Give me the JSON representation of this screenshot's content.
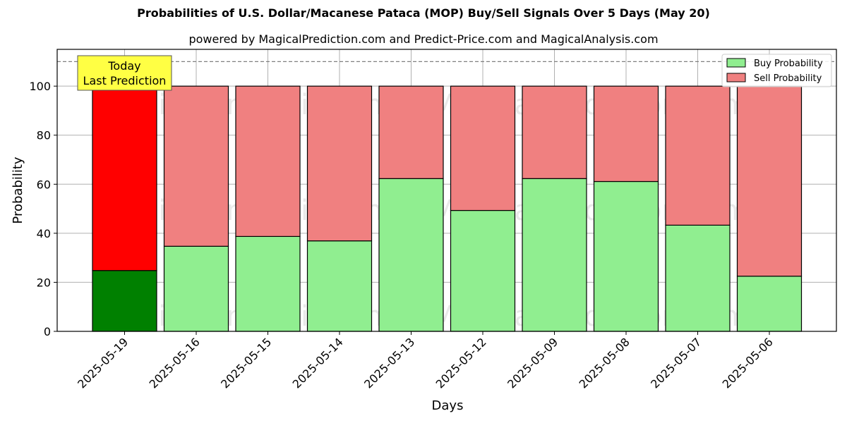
{
  "chart_data": {
    "type": "bar",
    "title": "Probabilities of U.S. Dollar/Macanese Pataca (MOP) Buy/Sell Signals Over 5 Days (May 20)",
    "subtitle": "powered by MagicalPrediction.com and Predict-Price.com and MagicalAnalysis.com",
    "xlabel": "Days",
    "ylabel": "Probability",
    "ylim": [
      0,
      115
    ],
    "yticks": [
      0,
      20,
      40,
      60,
      80,
      100
    ],
    "threshold_line": 110,
    "grid": true,
    "legend_position": "top-right",
    "categories": [
      "2025-05-19",
      "2025-05-16",
      "2025-05-15",
      "2025-05-14",
      "2025-05-13",
      "2025-05-12",
      "2025-05-09",
      "2025-05-08",
      "2025-05-07",
      "2025-05-06"
    ],
    "series": [
      {
        "name": "Buy Probability",
        "color": "#90ee90",
        "highlight_color": "#008000",
        "values": [
          24.8,
          34.7,
          38.7,
          36.9,
          62.3,
          49.3,
          62.3,
          61.1,
          43.3,
          22.5
        ]
      },
      {
        "name": "Sell Probability",
        "color": "#f08080",
        "highlight_color": "#ff0000",
        "values": [
          75.2,
          65.3,
          61.3,
          63.1,
          37.7,
          50.7,
          37.7,
          38.9,
          56.7,
          77.5
        ]
      }
    ],
    "annotation": {
      "lines": [
        "Today",
        "Last Prediction"
      ],
      "color": "#ffff44"
    },
    "watermarks": [
      "MagicalAnalysis.com",
      "MagicalPrediction.com"
    ]
  }
}
